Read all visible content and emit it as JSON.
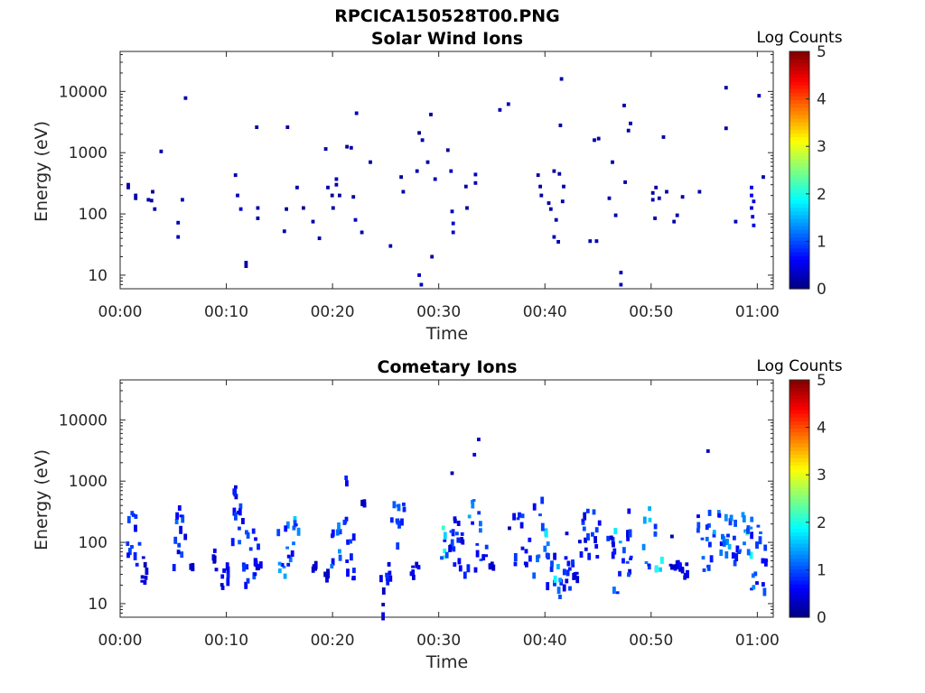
{
  "figure_title": "RPCICA150528T00.PNG",
  "colorbar": {
    "label": "Log Counts",
    "ticks": [
      "0",
      "1",
      "2",
      "3",
      "4",
      "5"
    ]
  },
  "chart_data": [
    {
      "type": "heatmap",
      "title": "Solar Wind Ions",
      "xlabel": "Time",
      "ylabel": "Energy (eV)",
      "yscale": "log",
      "ylim": [
        6,
        45000
      ],
      "xlim": [
        0,
        61.5
      ],
      "xticks": [
        "00:00",
        "00:10",
        "00:20",
        "00:30",
        "00:40",
        "00:50",
        "01:00"
      ],
      "yticks": [
        "10",
        "100",
        "1000",
        "10000"
      ],
      "clim": [
        0,
        5
      ],
      "points": [
        [
          0.6,
          300,
          0.2
        ],
        [
          0.6,
          270,
          0.2
        ],
        [
          1.3,
          200,
          0.2
        ],
        [
          1.3,
          180,
          0.1
        ],
        [
          2.5,
          170,
          0.2
        ],
        [
          2.8,
          165,
          0.2
        ],
        [
          2.9,
          230,
          0.1
        ],
        [
          3.1,
          120,
          0.2
        ],
        [
          3.7,
          1050,
          0.2
        ],
        [
          5.3,
          72,
          0.3
        ],
        [
          5.3,
          42,
          0.3
        ],
        [
          5.7,
          170,
          0.2
        ],
        [
          6.0,
          7800,
          0.2
        ],
        [
          10.7,
          430,
          0.2
        ],
        [
          10.9,
          200,
          0.3
        ],
        [
          11.2,
          120,
          0.4
        ],
        [
          11.7,
          14,
          0.2
        ],
        [
          11.7,
          16,
          0.2
        ],
        [
          12.7,
          2600,
          0.2
        ],
        [
          12.8,
          125,
          0.2
        ],
        [
          12.8,
          85,
          0.1
        ],
        [
          15.3,
          52,
          0.2
        ],
        [
          15.6,
          2600,
          0.2
        ],
        [
          15.5,
          120,
          0.1
        ],
        [
          16.5,
          270,
          0.2
        ],
        [
          17.1,
          125,
          0.1
        ],
        [
          18.0,
          75,
          0.2
        ],
        [
          18.6,
          40,
          0.2
        ],
        [
          19.2,
          1150,
          0.2
        ],
        [
          19.4,
          270,
          0.2
        ],
        [
          19.8,
          200,
          0.1
        ],
        [
          19.9,
          125,
          0.2
        ],
        [
          20.2,
          370,
          0.3
        ],
        [
          20.2,
          300,
          0.2
        ],
        [
          20.5,
          200,
          0.1
        ],
        [
          21.2,
          1250,
          0.1
        ],
        [
          21.6,
          1200,
          0.2
        ],
        [
          21.8,
          190,
          0.2
        ],
        [
          22.0,
          80,
          0.3
        ],
        [
          22.1,
          4400,
          0.3
        ],
        [
          22.6,
          50,
          0.2
        ],
        [
          23.4,
          700,
          0.2
        ],
        [
          25.3,
          30,
          0.2
        ],
        [
          26.3,
          400,
          0.1
        ],
        [
          26.5,
          230,
          0.2
        ],
        [
          27.8,
          500,
          0.2
        ],
        [
          28.0,
          2100,
          0.1
        ],
        [
          28.0,
          10,
          0.3
        ],
        [
          28.2,
          7,
          0.3
        ],
        [
          28.3,
          1600,
          0.2
        ],
        [
          28.8,
          700,
          0.2
        ],
        [
          29.1,
          4200,
          0.2
        ],
        [
          29.2,
          20,
          0.2
        ],
        [
          29.5,
          370,
          0.2
        ],
        [
          30.7,
          1100,
          0.2
        ],
        [
          31.0,
          500,
          0.3
        ],
        [
          31.1,
          110,
          0.3
        ],
        [
          31.2,
          70,
          0.4
        ],
        [
          31.2,
          50,
          0.4
        ],
        [
          32.4,
          280,
          0.2
        ],
        [
          32.5,
          125,
          0.2
        ],
        [
          33.3,
          440,
          0.3
        ],
        [
          33.3,
          320,
          0.3
        ],
        [
          35.6,
          5000,
          0.2
        ],
        [
          36.4,
          6200,
          0.2
        ],
        [
          39.2,
          430,
          0.2
        ],
        [
          39.4,
          280,
          0.2
        ],
        [
          39.5,
          200,
          0.2
        ],
        [
          40.2,
          150,
          0.2
        ],
        [
          40.4,
          120,
          0.2
        ],
        [
          40.7,
          500,
          0.2
        ],
        [
          40.7,
          42,
          0.3
        ],
        [
          40.9,
          80,
          0.2
        ],
        [
          41.1,
          35,
          0.3
        ],
        [
          41.2,
          450,
          0.2
        ],
        [
          41.3,
          2800,
          0.2
        ],
        [
          41.4,
          16000,
          0.2
        ],
        [
          41.5,
          160,
          0.2
        ],
        [
          41.6,
          280,
          0.2
        ],
        [
          44.1,
          36,
          0.2
        ],
        [
          44.5,
          1600,
          0.2
        ],
        [
          44.7,
          36,
          0.2
        ],
        [
          44.9,
          1700,
          0.2
        ],
        [
          45.9,
          180,
          0.2
        ],
        [
          46.2,
          700,
          0.2
        ],
        [
          46.5,
          95,
          0.2
        ],
        [
          47.0,
          11,
          0.3
        ],
        [
          47.0,
          7,
          0.3
        ],
        [
          47.3,
          5900,
          0.2
        ],
        [
          47.4,
          330,
          0.2
        ],
        [
          47.7,
          2300,
          0.2
        ],
        [
          47.9,
          3000,
          0.2
        ],
        [
          50.0,
          220,
          0.2
        ],
        [
          50.0,
          170,
          0.2
        ],
        [
          50.2,
          85,
          0.3
        ],
        [
          50.3,
          270,
          0.2
        ],
        [
          50.6,
          180,
          0.2
        ],
        [
          51.0,
          1800,
          0.2
        ],
        [
          51.3,
          230,
          0.2
        ],
        [
          52.0,
          75,
          0.2
        ],
        [
          52.3,
          95,
          0.2
        ],
        [
          52.8,
          190,
          0.2
        ],
        [
          54.4,
          230,
          0.2
        ],
        [
          56.9,
          11500,
          0.2
        ],
        [
          56.9,
          2500,
          0.2
        ],
        [
          57.8,
          75,
          0.3
        ],
        [
          59.3,
          270,
          0.5
        ],
        [
          59.3,
          200,
          0.5
        ],
        [
          59.5,
          160,
          0.5
        ],
        [
          59.3,
          125,
          0.4
        ],
        [
          59.4,
          90,
          0.5
        ],
        [
          59.5,
          65,
          0.5
        ],
        [
          60.0,
          8500,
          0.2
        ],
        [
          60.4,
          400,
          0.2
        ]
      ]
    },
    {
      "type": "heatmap",
      "title": "Cometary Ions",
      "xlabel": "Time",
      "ylabel": "Energy (eV)",
      "yscale": "log",
      "ylim": [
        6,
        45000
      ],
      "xlim": [
        0,
        61.5
      ],
      "xticks": [
        "00:00",
        "00:10",
        "00:20",
        "00:30",
        "00:40",
        "00:50",
        "01:00"
      ],
      "yticks": [
        "10",
        "100",
        "1000",
        "10000"
      ],
      "clim": [
        0,
        5
      ],
      "clusters": [
        [
          0.4,
          1.7,
          25,
          430,
          0.9
        ],
        [
          1.7,
          2.5,
          20,
          60,
          0.5
        ],
        [
          4.8,
          6.1,
          18,
          420,
          1.0
        ],
        [
          6.4,
          6.8,
          35,
          45,
          0.5
        ],
        [
          8.6,
          8.9,
          35,
          85,
          0.5
        ],
        [
          9.4,
          9.7,
          18,
          45,
          0.6
        ],
        [
          9.9,
          10.3,
          18,
          45,
          0.8
        ],
        [
          10.3,
          10.9,
          550,
          950,
          0.7
        ],
        [
          10.4,
          11.5,
          40,
          400,
          1.0
        ],
        [
          11.4,
          12.9,
          18,
          180,
          1.0
        ],
        [
          12.6,
          13.1,
          35,
          45,
          0.6
        ],
        [
          14.7,
          16.2,
          25,
          200,
          1.3
        ],
        [
          16.2,
          16.7,
          140,
          300,
          1.6
        ],
        [
          17.9,
          18.3,
          35,
          45,
          0.5
        ],
        [
          19.1,
          19.5,
          25,
          35,
          0.5
        ],
        [
          19.6,
          20.6,
          40,
          600,
          1.2
        ],
        [
          20.7,
          21.3,
          200,
          1300,
          0.8
        ],
        [
          21.2,
          22.3,
          25,
          150,
          0.9
        ],
        [
          22.6,
          22.9,
          400,
          450,
          0.4
        ],
        [
          24.3,
          24.7,
          6,
          30,
          0.5
        ],
        [
          24.8,
          25.5,
          20,
          60,
          0.8
        ],
        [
          25.3,
          26.0,
          70,
          420,
          1.0
        ],
        [
          26.0,
          26.6,
          100,
          700,
          1.0
        ],
        [
          27.2,
          28.0,
          18,
          50,
          0.6
        ],
        [
          30.0,
          30.5,
          50,
          180,
          2.0
        ],
        [
          30.4,
          31.3,
          60,
          200,
          0.9
        ],
        [
          31.3,
          32.8,
          25,
          300,
          0.9
        ],
        [
          32.7,
          33.3,
          180,
          550,
          1.4
        ],
        [
          33.3,
          34.4,
          30,
          400,
          1.1
        ],
        [
          34.6,
          35.0,
          35,
          45,
          0.5
        ],
        [
          36.9,
          37.8,
          40,
          450,
          0.9
        ],
        [
          38.0,
          38.6,
          40,
          120,
          0.8
        ],
        [
          38.8,
          39.6,
          25,
          550,
          1.0
        ],
        [
          39.6,
          40.2,
          60,
          250,
          1.6
        ],
        [
          40.0,
          40.8,
          18,
          120,
          1.0
        ],
        [
          40.8,
          41.5,
          12,
          45,
          1.7
        ],
        [
          41.5,
          43.0,
          16,
          60,
          0.8
        ],
        [
          43.0,
          44.5,
          50,
          350,
          0.9
        ],
        [
          44.5,
          45.0,
          50,
          300,
          0.8
        ],
        [
          45.7,
          46.3,
          50,
          700,
          0.8
        ],
        [
          46.3,
          47.0,
          12,
          170,
          1.6
        ],
        [
          47.0,
          48.2,
          25,
          350,
          0.9
        ],
        [
          49.0,
          49.8,
          25,
          450,
          1.6
        ],
        [
          50.2,
          51.0,
          35,
          200,
          1.8
        ],
        [
          51.3,
          52.6,
          35,
          45,
          0.6
        ],
        [
          52.7,
          53.5,
          25,
          45,
          0.6
        ],
        [
          54.1,
          55.6,
          35,
          400,
          1.0
        ],
        [
          55.6,
          57.4,
          60,
          350,
          1.3
        ],
        [
          57.4,
          58.4,
          35,
          250,
          1.0
        ],
        [
          58.4,
          58.9,
          80,
          420,
          2.1
        ],
        [
          58.8,
          59.3,
          35,
          220,
          1.7
        ],
        [
          59.2,
          60.0,
          12,
          420,
          1.2
        ],
        [
          59.6,
          60.8,
          15,
          200,
          1.0
        ]
      ],
      "points": [
        [
          33.2,
          2700,
          0.5
        ],
        [
          33.6,
          4800,
          0.3
        ],
        [
          55.2,
          3100,
          0.3
        ],
        [
          31.1,
          1350,
          0.2
        ],
        [
          8.9,
          36,
          0.5
        ],
        [
          41.9,
          140,
          0.4
        ],
        [
          36.5,
          170,
          0.2
        ],
        [
          51.8,
          125,
          0.2
        ]
      ]
    }
  ]
}
